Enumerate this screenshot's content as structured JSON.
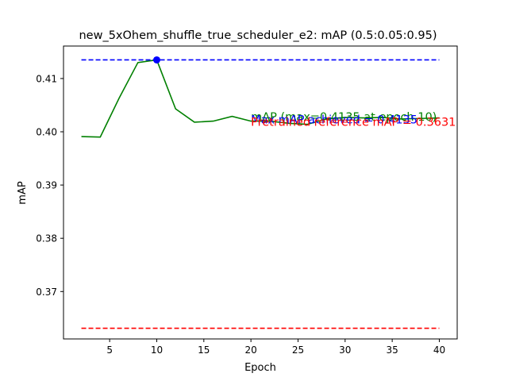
{
  "chart_data": {
    "type": "line",
    "title": "new_5xOhem_shuffle_true_scheduler_e2:  mAP (0.5:0.05:0.95)",
    "xlabel": "Epoch",
    "ylabel": "mAP",
    "xlim": [
      0.1,
      41.9
    ],
    "ylim": [
      0.3611,
      0.4161
    ],
    "xticks": [
      5,
      10,
      15,
      20,
      25,
      30,
      35,
      40
    ],
    "yticks": [
      0.37,
      0.38,
      0.39,
      0.4,
      0.41
    ],
    "ytick_labels": [
      "0.37",
      "0.38",
      "0.39",
      "0.40",
      "0.41"
    ],
    "grid": false,
    "series": [
      {
        "name": "mAP (max=0.4135 at epoch 10)",
        "color": "#008000",
        "style": "solid",
        "x": [
          2,
          4,
          6,
          8,
          10,
          12,
          14,
          16,
          18,
          20,
          22,
          24,
          26,
          28,
          30,
          32,
          34,
          36,
          38,
          40
        ],
        "y": [
          0.3991,
          0.399,
          0.4063,
          0.413,
          0.4135,
          0.4043,
          0.4018,
          0.402,
          0.4029,
          0.402,
          0.402,
          0.4016,
          0.4014,
          0.4024,
          0.4027,
          0.4026,
          0.4027,
          0.4024,
          0.4025,
          0.4026
        ]
      },
      {
        "name": "Max mAP achieved = 0.4135",
        "color": "#0000ff",
        "style": "dashed",
        "x": [
          2,
          40
        ],
        "y": [
          0.4135,
          0.4135
        ]
      },
      {
        "name": "Pretrained reference mAP = 0.3631",
        "color": "#ff0000",
        "style": "dashed",
        "x": [
          2,
          40
        ],
        "y": [
          0.3631,
          0.3631
        ]
      }
    ],
    "marker": {
      "x": 10,
      "y": 0.4135,
      "color": "#0000ff"
    },
    "annotations": [
      {
        "text": "mAP (max=0.4135 at epoch 10)",
        "color": "#008000",
        "x": 20,
        "y": 0.4021
      },
      {
        "text": "Max mAP achieved = 0.4135",
        "color": "#0000ff",
        "x": 20,
        "y": 0.4016
      },
      {
        "text": "Pretrained reference mAP = 0.3631",
        "color": "#ff0000",
        "x": 20,
        "y": 0.4011
      }
    ]
  }
}
